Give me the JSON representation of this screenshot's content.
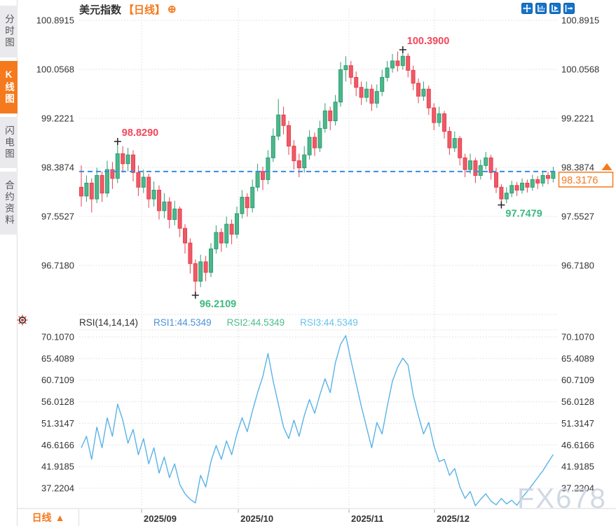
{
  "header": {
    "symbol": "美元指数",
    "period_tag": "【日线】",
    "plus": "⊕"
  },
  "toolbar": {
    "icons": [
      "pan",
      "auto-fit",
      "playback",
      "go-to-latest"
    ]
  },
  "sidebar": {
    "tabs": [
      {
        "label": "分时图",
        "active": false
      },
      {
        "label": "K线图",
        "active": true
      },
      {
        "label": "闪电图",
        "active": false
      },
      {
        "label": "合约资料",
        "active": false
      }
    ]
  },
  "bottom_bar": {
    "period_label": "日线",
    "arrow": "▲"
  },
  "watermark": "FX678",
  "colors": {
    "accent": "#f57a1d",
    "up": "#4cb78c",
    "up_stroke": "#2d9e72",
    "down": "#ee5a66",
    "down_stroke": "#e6414f",
    "price_line": "#3b8be0",
    "rsi_line": "#5ab3e6",
    "annotation_high": "#f2475a",
    "annotation_low": "#3cb87f",
    "grid": "#dcdcdc",
    "axis_text": "#333333",
    "icon_blue": "#1473cc",
    "border": "#d9d9d9",
    "watermark": "#ccd5e2"
  },
  "chart_data": {
    "type": "candlestick+line",
    "title": "美元指数 日线",
    "price_panel": {
      "ytick_labels": [
        "100.8915",
        "100.0568",
        "99.2221",
        "98.3874",
        "97.5527",
        "96.7180"
      ],
      "current_price": {
        "value": 98.3176,
        "label": "98.3176"
      },
      "annotations": [
        {
          "label": "98.8290",
          "value": 98.829,
          "candle_index": 7,
          "anchor": "high",
          "color": "#f2475a"
        },
        {
          "label": "100.3900",
          "value": 100.39,
          "candle_index": 62,
          "anchor": "high",
          "color": "#f2475a"
        },
        {
          "label": "96.2109",
          "value": 96.2109,
          "candle_index": 22,
          "anchor": "low",
          "color": "#3cb87f"
        },
        {
          "label": "97.7479",
          "value": 97.7479,
          "candle_index": 81,
          "anchor": "low",
          "color": "#3cb87f"
        }
      ],
      "candles_ohlc": [
        [
          98.05,
          98.42,
          97.72,
          97.9
        ],
        [
          97.9,
          98.25,
          97.8,
          98.12
        ],
        [
          98.12,
          98.2,
          97.62,
          97.85
        ],
        [
          97.85,
          98.38,
          97.78,
          98.25
        ],
        [
          98.25,
          98.32,
          97.8,
          97.95
        ],
        [
          97.95,
          98.5,
          97.88,
          98.35
        ],
        [
          98.35,
          98.48,
          98.02,
          98.2
        ],
        [
          98.2,
          98.829,
          98.12,
          98.62
        ],
        [
          98.62,
          98.75,
          98.3,
          98.45
        ],
        [
          98.45,
          98.72,
          98.32,
          98.6
        ],
        [
          98.6,
          98.68,
          98.15,
          98.3
        ],
        [
          98.3,
          98.42,
          97.9,
          98.05
        ],
        [
          98.05,
          98.35,
          97.95,
          98.22
        ],
        [
          98.22,
          98.28,
          97.7,
          97.85
        ],
        [
          97.85,
          98.15,
          97.72,
          98.0
        ],
        [
          98.0,
          98.08,
          97.5,
          97.65
        ],
        [
          97.65,
          97.95,
          97.52,
          97.8
        ],
        [
          97.8,
          97.88,
          97.35,
          97.5
        ],
        [
          97.5,
          97.82,
          97.4,
          97.68
        ],
        [
          97.68,
          97.72,
          97.2,
          97.35
        ],
        [
          97.35,
          97.42,
          96.92,
          97.1
        ],
        [
          97.1,
          97.18,
          96.58,
          96.75
        ],
        [
          96.75,
          96.82,
          96.2109,
          96.45
        ],
        [
          96.45,
          96.9,
          96.35,
          96.78
        ],
        [
          96.78,
          96.88,
          96.45,
          96.6
        ],
        [
          96.6,
          97.1,
          96.52,
          97.0
        ],
        [
          97.0,
          97.4,
          96.92,
          97.28
        ],
        [
          97.28,
          97.35,
          96.95,
          97.1
        ],
        [
          97.1,
          97.55,
          97.02,
          97.42
        ],
        [
          97.42,
          97.5,
          97.08,
          97.25
        ],
        [
          97.25,
          97.72,
          97.18,
          97.6
        ],
        [
          97.6,
          98.0,
          97.52,
          97.88
        ],
        [
          97.88,
          97.95,
          97.55,
          97.7
        ],
        [
          97.7,
          98.18,
          97.62,
          98.05
        ],
        [
          98.05,
          98.45,
          97.98,
          98.32
        ],
        [
          98.32,
          98.4,
          98.0,
          98.18
        ],
        [
          98.18,
          98.68,
          98.1,
          98.55
        ],
        [
          98.55,
          99.05,
          98.48,
          98.92
        ],
        [
          98.92,
          99.55,
          98.85,
          99.28
        ],
        [
          99.28,
          99.42,
          98.95,
          99.1
        ],
        [
          99.1,
          99.18,
          98.6,
          98.75
        ],
        [
          98.75,
          98.85,
          98.35,
          98.5
        ],
        [
          98.5,
          98.62,
          98.22,
          98.38
        ],
        [
          98.38,
          98.75,
          98.3,
          98.6
        ],
        [
          98.6,
          99.02,
          98.52,
          98.9
        ],
        [
          98.9,
          98.98,
          98.58,
          98.72
        ],
        [
          98.72,
          99.18,
          98.65,
          99.05
        ],
        [
          99.05,
          99.48,
          98.98,
          99.35
        ],
        [
          99.35,
          99.42,
          99.02,
          99.18
        ],
        [
          99.18,
          99.62,
          99.1,
          99.5
        ],
        [
          99.5,
          100.18,
          99.42,
          100.05
        ],
        [
          100.05,
          100.28,
          99.85,
          100.12
        ],
        [
          100.12,
          100.2,
          99.8,
          99.92
        ],
        [
          99.92,
          100.02,
          99.6,
          99.75
        ],
        [
          99.75,
          99.85,
          99.45,
          99.58
        ],
        [
          99.58,
          99.85,
          99.5,
          99.72
        ],
        [
          99.72,
          99.8,
          99.35,
          99.48
        ],
        [
          99.48,
          99.8,
          99.4,
          99.68
        ],
        [
          99.68,
          100.05,
          99.6,
          99.92
        ],
        [
          99.92,
          100.2,
          99.85,
          100.08
        ],
        [
          100.08,
          100.32,
          100.0,
          100.2
        ],
        [
          100.2,
          100.36,
          100.02,
          100.12
        ],
        [
          100.12,
          100.39,
          100.05,
          100.28
        ],
        [
          100.28,
          100.33,
          99.92,
          100.04
        ],
        [
          100.04,
          100.12,
          99.7,
          99.82
        ],
        [
          99.82,
          99.9,
          99.48,
          99.6
        ],
        [
          99.6,
          99.85,
          99.52,
          99.72
        ],
        [
          99.72,
          99.78,
          99.28,
          99.4
        ],
        [
          99.4,
          99.48,
          99.02,
          99.15
        ],
        [
          99.15,
          99.42,
          99.08,
          99.3
        ],
        [
          99.3,
          99.35,
          98.88,
          99.0
        ],
        [
          99.0,
          99.08,
          98.6,
          98.72
        ],
        [
          98.72,
          99.0,
          98.65,
          98.88
        ],
        [
          98.88,
          98.92,
          98.42,
          98.55
        ],
        [
          98.55,
          98.62,
          98.22,
          98.35
        ],
        [
          98.35,
          98.62,
          98.28,
          98.5
        ],
        [
          98.5,
          98.55,
          98.12,
          98.25
        ],
        [
          98.25,
          98.52,
          98.18,
          98.42
        ],
        [
          98.42,
          98.65,
          98.35,
          98.55
        ],
        [
          98.55,
          98.6,
          98.18,
          98.3
        ],
        [
          98.3,
          98.38,
          97.95,
          98.05
        ],
        [
          98.05,
          98.1,
          97.7479,
          97.85
        ],
        [
          97.85,
          98.05,
          97.78,
          97.95
        ],
        [
          97.95,
          98.16,
          97.88,
          98.08
        ],
        [
          98.08,
          98.14,
          97.9,
          98.0
        ],
        [
          98.0,
          98.2,
          97.94,
          98.12
        ],
        [
          98.12,
          98.18,
          97.96,
          98.05
        ],
        [
          98.05,
          98.26,
          97.99,
          98.18
        ],
        [
          98.18,
          98.24,
          98.02,
          98.12
        ],
        [
          98.12,
          98.33,
          98.06,
          98.25
        ],
        [
          98.25,
          98.31,
          98.1,
          98.2
        ],
        [
          98.2,
          98.4,
          98.13,
          98.3176
        ]
      ]
    },
    "rsi_panel": {
      "indicator_name": "RSI(14,14,14)",
      "series_labels": [
        "RSI1:44.5349",
        "RSI2:44.5349",
        "RSI3:44.5349"
      ],
      "ytick_labels": [
        "70.1070",
        "65.4089",
        "60.7109",
        "56.0128",
        "51.3147",
        "46.6166",
        "41.9185",
        "37.2204"
      ],
      "values": [
        46.0,
        48.5,
        43.5,
        50.5,
        46.0,
        52.5,
        48.5,
        55.5,
        52.0,
        47.0,
        50.0,
        44.5,
        48.0,
        42.5,
        46.0,
        40.5,
        44.0,
        39.5,
        42.5,
        38.0,
        36.0,
        34.8,
        34.0,
        40.0,
        37.5,
        43.0,
        46.5,
        43.5,
        47.5,
        44.5,
        49.0,
        52.5,
        49.5,
        54.0,
        58.0,
        61.5,
        66.5,
        60.5,
        55.5,
        50.5,
        48.0,
        52.0,
        48.5,
        53.0,
        56.5,
        53.5,
        57.5,
        61.0,
        58.0,
        64.5,
        68.5,
        70.4,
        65.0,
        60.0,
        55.0,
        50.5,
        46.0,
        51.5,
        49.0,
        55.0,
        60.5,
        63.5,
        65.5,
        64.0,
        57.5,
        53.0,
        49.0,
        51.5,
        46.5,
        43.0,
        43.5,
        40.0,
        41.5,
        37.5,
        35.0,
        36.5,
        33.4,
        34.8,
        36.0,
        34.4,
        33.6,
        35.0,
        33.8,
        34.6,
        33.5,
        35.2,
        36.5,
        38.0,
        39.5,
        41.0,
        42.8,
        44.5349
      ]
    },
    "xaxis": {
      "labels": [
        "2025/09",
        "2025/10",
        "2025/11",
        "2025/12"
      ],
      "positions": [
        0.1305,
        0.333,
        0.5645,
        0.7434
      ]
    }
  }
}
